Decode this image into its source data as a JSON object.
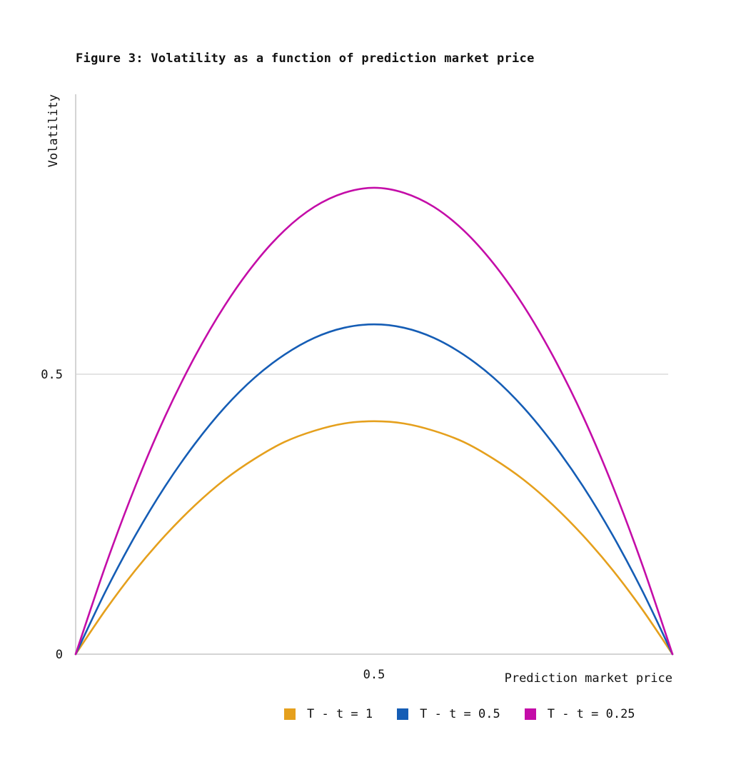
{
  "title": "Figure 3: Volatility as a function of prediction market price",
  "chart_data": {
    "type": "line",
    "title": "Figure 3: Volatility as a function of prediction market price",
    "xlabel": "Prediction market price",
    "ylabel": "Volatility",
    "xlim": [
      0,
      1
    ],
    "ylim": [
      0,
      1
    ],
    "x_ticks": [
      {
        "value": 0.5,
        "label": "0.5"
      }
    ],
    "y_ticks": [
      {
        "value": 0,
        "label": "0"
      },
      {
        "value": 0.5,
        "label": "0.5"
      }
    ],
    "grid": "horizontal",
    "legend_position": "bottom-right",
    "x": [
      0,
      0.05,
      0.1,
      0.15,
      0.2,
      0.25,
      0.3,
      0.35,
      0.4,
      0.45,
      0.5,
      0.55,
      0.6,
      0.65,
      0.7,
      0.75,
      0.8,
      0.85,
      0.9,
      0.95,
      1
    ],
    "series": [
      {
        "name": "T - t = 1",
        "color": "#E5A01D",
        "values": [
          0,
          0.079,
          0.15,
          0.212,
          0.266,
          0.312,
          0.349,
          0.379,
          0.399,
          0.412,
          0.416,
          0.412,
          0.399,
          0.379,
          0.349,
          0.312,
          0.266,
          0.212,
          0.15,
          0.079,
          0
        ]
      },
      {
        "name": "T - t = 0.5",
        "color": "#155DB5",
        "values": [
          0,
          0.112,
          0.212,
          0.3,
          0.376,
          0.441,
          0.494,
          0.535,
          0.565,
          0.583,
          0.589,
          0.583,
          0.565,
          0.535,
          0.494,
          0.441,
          0.376,
          0.3,
          0.212,
          0.112,
          0
        ]
      },
      {
        "name": "T - t = 0.25",
        "color": "#C40DA8",
        "values": [
          0,
          0.158,
          0.3,
          0.425,
          0.532,
          0.623,
          0.698,
          0.757,
          0.799,
          0.824,
          0.833,
          0.824,
          0.799,
          0.757,
          0.698,
          0.623,
          0.532,
          0.425,
          0.3,
          0.158,
          0
        ]
      }
    ]
  }
}
